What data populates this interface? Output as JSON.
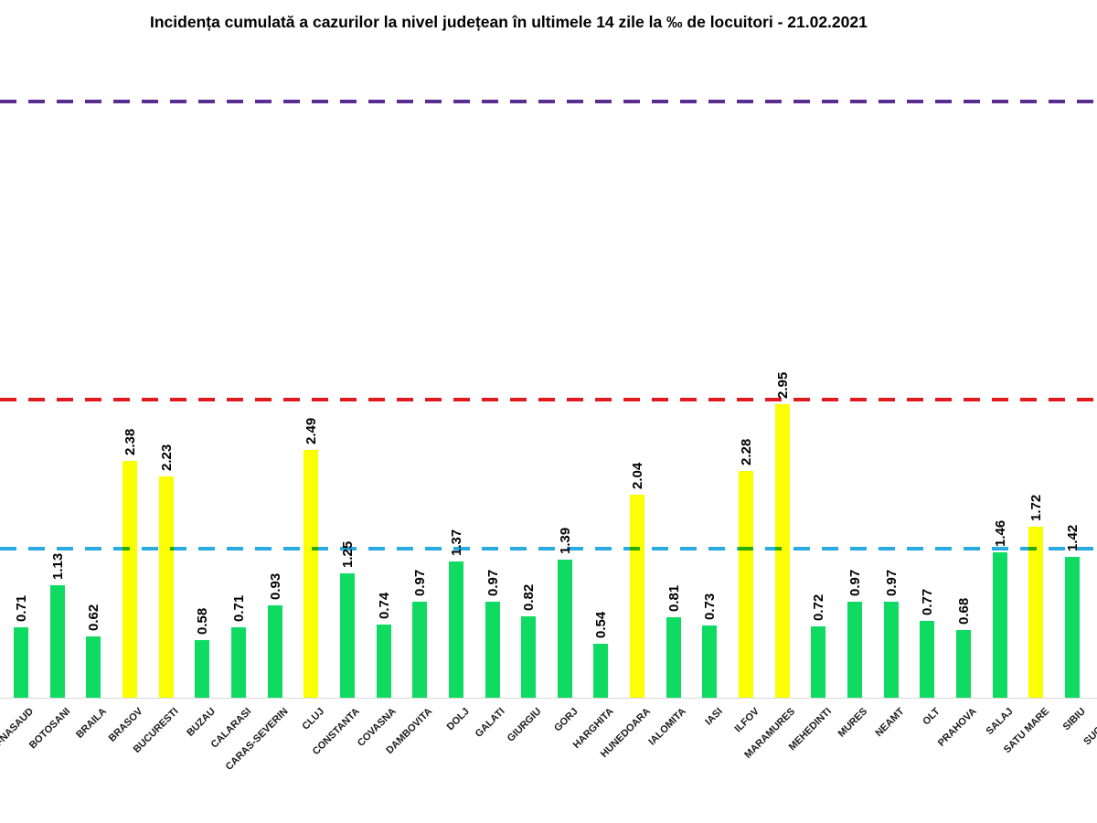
{
  "title": "Incidența cumulată a cazurilor la nivel județean în ultimele 14 zile la ‰ de locuitori - 21.02.2021",
  "chart_data": {
    "type": "bar",
    "title": "Incidența cumulată a cazurilor la nivel județean în ultimele 14 zile la ‰ de locuitori - 21.02.2021",
    "unit": "‰ de locuitori",
    "xlabel": "",
    "ylabel": "",
    "ylim": [
      0,
      6.3
    ],
    "grid": false,
    "legend": false,
    "value_label_rotation_deg": 90,
    "category_label_rotation_deg": 45,
    "clipped_edges": {
      "left_partial_label": "SAUD",
      "right_partial_label": "SUCE"
    },
    "categories": [
      "BISTRITA-NASAUD",
      "BOTOSANI",
      "BRAILA",
      "BRASOV",
      "BUCURESTI",
      "BUZAU",
      "CALARASI",
      "CARAS-SEVERIN",
      "CLUJ",
      "CONSTANTA",
      "COVASNA",
      "DAMBOVITA",
      "DOLJ",
      "GALATI",
      "GIURGIU",
      "GORJ",
      "HARGHITA",
      "HUNEDOARA",
      "IALOMITA",
      "IASI",
      "ILFOV",
      "MARAMURES",
      "MEHEDINTI",
      "MURES",
      "NEAMT",
      "OLT",
      "PRAHOVA",
      "SALAJ",
      "SATU MARE",
      "SIBIU",
      "SUCEAVA"
    ],
    "values": [
      0.71,
      1.13,
      0.62,
      2.38,
      2.23,
      0.58,
      0.71,
      0.93,
      2.49,
      1.25,
      0.74,
      0.97,
      1.37,
      0.97,
      0.82,
      1.39,
      0.54,
      2.04,
      0.81,
      0.73,
      2.28,
      2.95,
      0.72,
      0.97,
      0.97,
      0.77,
      0.68,
      1.46,
      1.72,
      1.42,
      null
    ],
    "bar_colors": [
      "green",
      "green",
      "green",
      "yellow",
      "yellow",
      "green",
      "green",
      "green",
      "yellow",
      "green",
      "green",
      "green",
      "green",
      "green",
      "green",
      "green",
      "green",
      "yellow",
      "green",
      "green",
      "yellow",
      "yellow",
      "green",
      "green",
      "green",
      "green",
      "green",
      "green",
      "yellow",
      "green",
      null
    ],
    "thresholds": [
      {
        "name": "threshold-1-5",
        "value": 1.5,
        "color": "#29ABE2",
        "style": "dashed"
      },
      {
        "name": "threshold-3",
        "value": 3,
        "color": "#E2191F",
        "style": "dashed"
      },
      {
        "name": "threshold-6",
        "value": 6,
        "color": "#5C2D91",
        "style": "dashed"
      }
    ],
    "colors": {
      "bar_green": "#0FDB63",
      "bar_yellow": "#FCFF00",
      "axis_line": "#d9d9d9",
      "label_text": "#000000"
    }
  }
}
